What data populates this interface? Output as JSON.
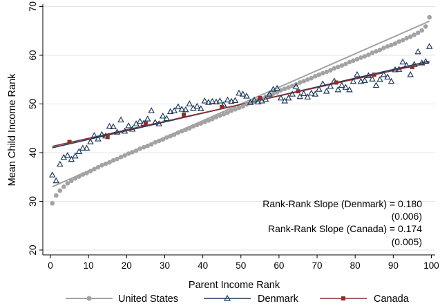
{
  "chart_data": {
    "type": "scatter",
    "xlabel": "Parent Income Rank",
    "ylabel": "Mean Child Income Rank",
    "xlim": [
      -2,
      101
    ],
    "ylim": [
      19,
      70.5
    ],
    "xticks": [
      0,
      10,
      20,
      30,
      40,
      50,
      60,
      70,
      80,
      90,
      100
    ],
    "yticks": [
      20,
      30,
      40,
      50,
      60,
      70
    ],
    "grid": "horizontal",
    "legend_position": "bottom",
    "colors": {
      "us": "#a3a3a3",
      "denmark": "#1f3b5e",
      "canada": "#8e2e2e",
      "axis": "#000000"
    },
    "series": [
      {
        "name": "United States",
        "marker": "circle",
        "fit": {
          "x": [
            0.5,
            99.5
          ],
          "y": [
            33.0,
            67.0
          ]
        },
        "x": [
          0.5,
          1.5,
          2.5,
          3.5,
          4.5,
          5.5,
          6.5,
          7.5,
          8.5,
          9.5,
          10.5,
          11.5,
          12.5,
          13.5,
          14.5,
          15.5,
          16.5,
          17.5,
          18.5,
          19.5,
          20.5,
          21.5,
          22.5,
          23.5,
          24.5,
          25.5,
          26.5,
          27.5,
          28.5,
          29.5,
          30.5,
          31.5,
          32.5,
          33.5,
          34.5,
          35.5,
          36.5,
          37.5,
          38.5,
          39.5,
          40.5,
          41.5,
          42.5,
          43.5,
          44.5,
          45.5,
          46.5,
          47.5,
          48.5,
          49.5,
          50.5,
          51.5,
          52.5,
          53.5,
          54.5,
          55.5,
          56.5,
          57.5,
          58.5,
          59.5,
          60.5,
          61.5,
          62.5,
          63.5,
          64.5,
          65.5,
          66.5,
          67.5,
          68.5,
          69.5,
          70.5,
          71.5,
          72.5,
          73.5,
          74.5,
          75.5,
          76.5,
          77.5,
          78.5,
          79.5,
          80.5,
          81.5,
          82.5,
          83.5,
          84.5,
          85.5,
          86.5,
          87.5,
          88.5,
          89.5,
          90.5,
          91.5,
          92.5,
          93.5,
          94.5,
          95.5,
          96.5,
          97.5,
          98.5,
          99.5
        ],
        "y": [
          29.6,
          31.2,
          32.2,
          33.0,
          33.7,
          34.2,
          34.7,
          35.1,
          35.5,
          35.8,
          36.2,
          36.6,
          37.0,
          37.4,
          37.7,
          38.0,
          38.4,
          38.7,
          39.1,
          39.4,
          39.8,
          40.1,
          40.4,
          40.8,
          41.1,
          41.4,
          41.7,
          42.1,
          42.4,
          42.7,
          43.1,
          43.4,
          43.7,
          44.1,
          44.4,
          44.7,
          45.0,
          45.4,
          45.7,
          46.0,
          46.3,
          46.6,
          46.9,
          47.3,
          47.6,
          47.9,
          48.2,
          48.6,
          48.9,
          49.2,
          49.5,
          49.9,
          50.2,
          50.5,
          50.8,
          51.1,
          51.5,
          51.8,
          52.1,
          52.4,
          52.8,
          53.1,
          53.4,
          53.7,
          54.0,
          54.4,
          54.7,
          55.0,
          55.3,
          55.7,
          56.0,
          56.3,
          56.6,
          56.9,
          57.3,
          57.6,
          57.9,
          58.2,
          58.6,
          58.9,
          59.2,
          59.5,
          59.8,
          60.1,
          60.5,
          60.8,
          61.1,
          61.5,
          61.8,
          62.1,
          62.4,
          62.8,
          63.1,
          63.5,
          63.8,
          64.2,
          64.6,
          65.1,
          65.9,
          67.8
        ]
      },
      {
        "name": "Denmark",
        "marker": "triangle",
        "fit": {
          "x": [
            0.5,
            99.5
          ],
          "y": [
            41.0,
            58.8
          ]
        },
        "x": [
          0.5,
          1.5,
          2.5,
          3.5,
          4.5,
          5.5,
          6.5,
          7.5,
          8.5,
          9.5,
          10.5,
          11.5,
          12.5,
          13.5,
          14.5,
          15.5,
          16.5,
          17.5,
          18.5,
          19.5,
          20.5,
          21.5,
          22.5,
          23.5,
          24.5,
          25.5,
          26.5,
          27.5,
          28.5,
          29.5,
          30.5,
          31.5,
          32.5,
          33.5,
          34.5,
          35.5,
          36.5,
          37.5,
          38.5,
          39.5,
          40.5,
          41.5,
          42.5,
          43.5,
          44.5,
          45.5,
          46.5,
          47.5,
          48.5,
          49.5,
          50.5,
          51.5,
          52.5,
          53.5,
          54.5,
          55.5,
          56.5,
          57.5,
          58.5,
          59.5,
          60.5,
          61.5,
          62.5,
          63.5,
          64.5,
          65.5,
          66.5,
          67.5,
          68.5,
          69.5,
          70.5,
          71.5,
          72.5,
          73.5,
          74.5,
          75.5,
          76.5,
          77.5,
          78.5,
          79.5,
          80.5,
          81.5,
          82.5,
          83.5,
          84.5,
          85.5,
          86.5,
          87.5,
          88.5,
          89.5,
          90.5,
          91.5,
          92.5,
          93.5,
          94.5,
          95.5,
          96.5,
          97.5,
          98.5,
          99.5
        ],
        "y": [
          35.4,
          34.2,
          37.6,
          39.0,
          39.4,
          38.6,
          39.3,
          40.2,
          40.9,
          40.9,
          42.2,
          43.5,
          42.8,
          43.7,
          43.4,
          45.4,
          45.3,
          44.2,
          46.7,
          44.4,
          45.5,
          44.8,
          45.9,
          46.4,
          46.0,
          46.9,
          48.6,
          46.2,
          45.9,
          47.5,
          47.0,
          48.4,
          48.6,
          49.4,
          48.9,
          48.8,
          50.0,
          49.1,
          49.5,
          49.0,
          50.6,
          50.3,
          50.5,
          50.4,
          50.6,
          49.8,
          50.8,
          50.5,
          50.7,
          52.2,
          52.0,
          51.6,
          50.3,
          50.8,
          50.4,
          50.6,
          50.9,
          52.0,
          53.0,
          53.2,
          51.2,
          50.6,
          51.2,
          52.0,
          53.6,
          51.5,
          52.1,
          51.4,
          52.2,
          52.0,
          53.0,
          54.1,
          52.6,
          53.6,
          54.7,
          52.9,
          53.8,
          53.4,
          52.9,
          54.6,
          56.0,
          54.6,
          54.8,
          55.8,
          55.1,
          53.8,
          55.0,
          56.0,
          55.5,
          54.6,
          57.0,
          57.1,
          58.6,
          57.9,
          56.0,
          58.1,
          60.7,
          58.4,
          58.7,
          61.8
        ]
      },
      {
        "name": "Canada",
        "marker": "square",
        "fit": {
          "x": [
            0.5,
            99.5
          ],
          "y": [
            41.3,
            58.5
          ]
        },
        "x": [
          5,
          15,
          25,
          35,
          45,
          55,
          65,
          75,
          85,
          95
        ],
        "y": [
          42.2,
          43.2,
          46.0,
          47.8,
          49.4,
          51.2,
          52.6,
          54.4,
          56.0,
          57.6
        ]
      }
    ],
    "annotations": [
      {
        "label": "Rank-Rank Slope (Denmark) = 0.180",
        "se": "(0.006)"
      },
      {
        "label": "Rank-Rank Slope (Canada) = 0.174",
        "se": "(0.005)"
      }
    ]
  }
}
